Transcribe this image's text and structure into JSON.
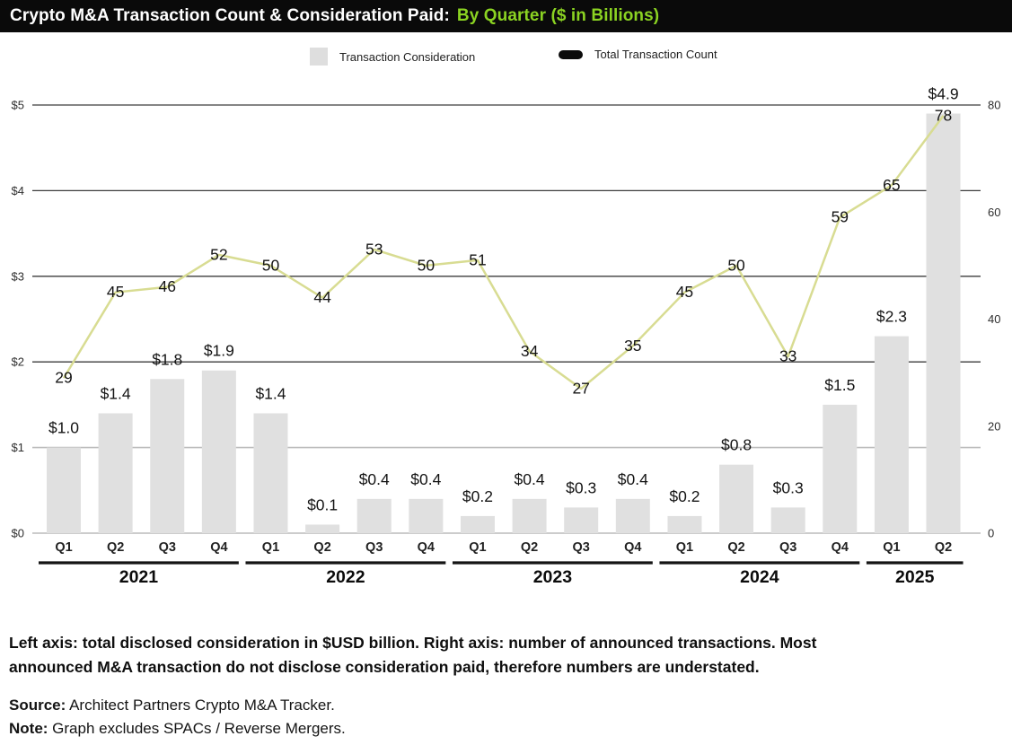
{
  "title": {
    "main": "Crypto M&A Transaction Count & Consideration Paid:",
    "highlight": "By Quarter ($ in Billions)"
  },
  "colors": {
    "title_highlight": "#8bd322",
    "bar": "#e0e0e0",
    "line": "#d8dc92",
    "grid_dark": "#3c3c3c",
    "grid_light": "#bbbbbb",
    "year_rule": "#141414"
  },
  "chart_data": {
    "type": "bar+line combo",
    "categories": [
      "Q1",
      "Q2",
      "Q3",
      "Q4",
      "Q1",
      "Q2",
      "Q3",
      "Q4",
      "Q1",
      "Q2",
      "Q3",
      "Q4",
      "Q1",
      "Q2",
      "Q3",
      "Q4",
      "Q1",
      "Q2"
    ],
    "year_groups": [
      {
        "year": "2021",
        "count": 4
      },
      {
        "year": "2022",
        "count": 4
      },
      {
        "year": "2023",
        "count": 4
      },
      {
        "year": "2024",
        "count": 4
      },
      {
        "year": "2025",
        "count": 2
      }
    ],
    "series": [
      {
        "name": "Transaction Consideration",
        "type": "bar",
        "axis": "left",
        "unit": "$ in Billions",
        "values": [
          1.0,
          1.4,
          1.8,
          1.9,
          1.4,
          0.1,
          0.4,
          0.4,
          0.2,
          0.4,
          0.3,
          0.4,
          0.2,
          0.8,
          0.3,
          1.5,
          2.3,
          4.9
        ],
        "labels": [
          "$1.0",
          "$1.4",
          "$1.8",
          "$1.9",
          "$1.4",
          "$0.1",
          "$0.4",
          "$0.4",
          "$0.2",
          "$0.4",
          "$0.3",
          "$0.4",
          "$0.2",
          "$0.8",
          "$0.3",
          "$1.5",
          "$2.3",
          "$4.9"
        ]
      },
      {
        "name": "Total Transaction Count",
        "type": "line",
        "axis": "right",
        "values": [
          29,
          45,
          46,
          52,
          50,
          44,
          53,
          50,
          51,
          34,
          27,
          35,
          45,
          50,
          33,
          59,
          65,
          78
        ],
        "labels": [
          "29",
          "45",
          "46",
          "52",
          "50",
          "44",
          "53",
          "50",
          "51",
          "34",
          "27",
          "35",
          "45",
          "50",
          "33",
          "59",
          "65",
          "78"
        ]
      }
    ],
    "left_axis": {
      "ticks": [
        "$0",
        "$1",
        "$2",
        "$3",
        "$4",
        "$5"
      ],
      "tick_values": [
        0,
        1,
        2,
        3,
        4,
        5
      ],
      "range": [
        0,
        5
      ]
    },
    "right_axis": {
      "ticks": [
        "0",
        "20",
        "40",
        "60",
        "80"
      ],
      "tick_values": [
        0,
        20,
        40,
        60,
        80
      ],
      "range": [
        0,
        80
      ]
    },
    "grid": "horizontal",
    "legend_position": "top"
  },
  "footnote": {
    "line1": "Left axis: total disclosed consideration in $USD billion. Right axis: number of announced transactions. Most",
    "line2": "announced M&A transaction do not disclose consideration paid, therefore numbers are understated."
  },
  "source": {
    "label": "Source:",
    "text": " Architect Partners Crypto M&A Tracker."
  },
  "note": {
    "label": "Note:",
    "text": " Graph excludes SPACs / Reverse Mergers."
  }
}
